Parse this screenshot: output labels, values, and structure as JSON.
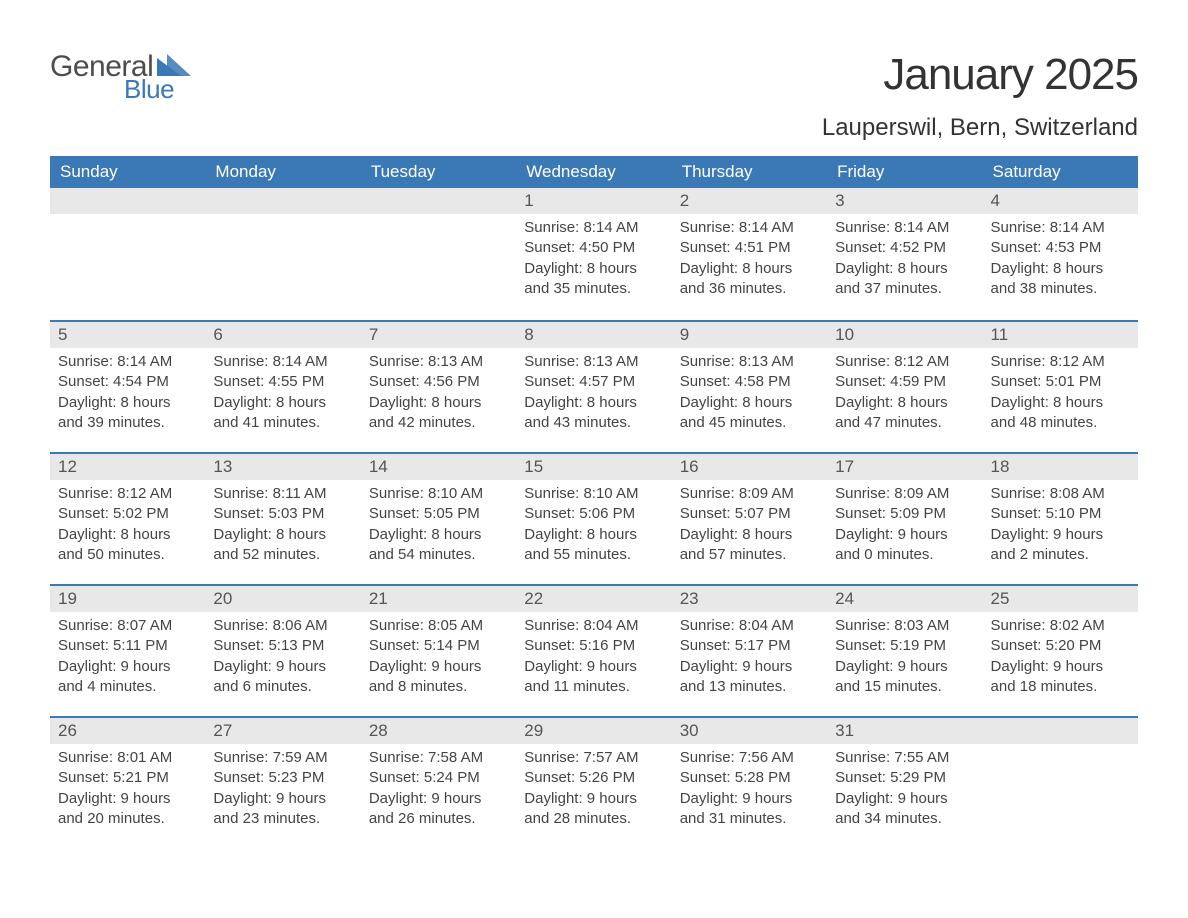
{
  "logo": {
    "line1": "General",
    "line2": "Blue",
    "accent_color": "#3b78b6"
  },
  "title": "January 2025",
  "subtitle": "Lauperswil, Bern, Switzerland",
  "structure_type": "table",
  "colors": {
    "header_bg": "#3b78b6",
    "header_text": "#ffffff",
    "daynum_bg": "#e8e8e8",
    "text": "#444444",
    "week_border": "#3b78b6"
  },
  "typography": {
    "title_fontsize": 44,
    "subtitle_fontsize": 24,
    "dayhead_fontsize": 17,
    "body_fontsize": 15
  },
  "day_headers": [
    "Sunday",
    "Monday",
    "Tuesday",
    "Wednesday",
    "Thursday",
    "Friday",
    "Saturday"
  ],
  "weeks": [
    [
      {
        "blank": true
      },
      {
        "blank": true
      },
      {
        "blank": true
      },
      {
        "n": "1",
        "sunrise": "Sunrise: 8:14 AM",
        "sunset": "Sunset: 4:50 PM",
        "d1": "Daylight: 8 hours",
        "d2": "and 35 minutes."
      },
      {
        "n": "2",
        "sunrise": "Sunrise: 8:14 AM",
        "sunset": "Sunset: 4:51 PM",
        "d1": "Daylight: 8 hours",
        "d2": "and 36 minutes."
      },
      {
        "n": "3",
        "sunrise": "Sunrise: 8:14 AM",
        "sunset": "Sunset: 4:52 PM",
        "d1": "Daylight: 8 hours",
        "d2": "and 37 minutes."
      },
      {
        "n": "4",
        "sunrise": "Sunrise: 8:14 AM",
        "sunset": "Sunset: 4:53 PM",
        "d1": "Daylight: 8 hours",
        "d2": "and 38 minutes."
      }
    ],
    [
      {
        "n": "5",
        "sunrise": "Sunrise: 8:14 AM",
        "sunset": "Sunset: 4:54 PM",
        "d1": "Daylight: 8 hours",
        "d2": "and 39 minutes."
      },
      {
        "n": "6",
        "sunrise": "Sunrise: 8:14 AM",
        "sunset": "Sunset: 4:55 PM",
        "d1": "Daylight: 8 hours",
        "d2": "and 41 minutes."
      },
      {
        "n": "7",
        "sunrise": "Sunrise: 8:13 AM",
        "sunset": "Sunset: 4:56 PM",
        "d1": "Daylight: 8 hours",
        "d2": "and 42 minutes."
      },
      {
        "n": "8",
        "sunrise": "Sunrise: 8:13 AM",
        "sunset": "Sunset: 4:57 PM",
        "d1": "Daylight: 8 hours",
        "d2": "and 43 minutes."
      },
      {
        "n": "9",
        "sunrise": "Sunrise: 8:13 AM",
        "sunset": "Sunset: 4:58 PM",
        "d1": "Daylight: 8 hours",
        "d2": "and 45 minutes."
      },
      {
        "n": "10",
        "sunrise": "Sunrise: 8:12 AM",
        "sunset": "Sunset: 4:59 PM",
        "d1": "Daylight: 8 hours",
        "d2": "and 47 minutes."
      },
      {
        "n": "11",
        "sunrise": "Sunrise: 8:12 AM",
        "sunset": "Sunset: 5:01 PM",
        "d1": "Daylight: 8 hours",
        "d2": "and 48 minutes."
      }
    ],
    [
      {
        "n": "12",
        "sunrise": "Sunrise: 8:12 AM",
        "sunset": "Sunset: 5:02 PM",
        "d1": "Daylight: 8 hours",
        "d2": "and 50 minutes."
      },
      {
        "n": "13",
        "sunrise": "Sunrise: 8:11 AM",
        "sunset": "Sunset: 5:03 PM",
        "d1": "Daylight: 8 hours",
        "d2": "and 52 minutes."
      },
      {
        "n": "14",
        "sunrise": "Sunrise: 8:10 AM",
        "sunset": "Sunset: 5:05 PM",
        "d1": "Daylight: 8 hours",
        "d2": "and 54 minutes."
      },
      {
        "n": "15",
        "sunrise": "Sunrise: 8:10 AM",
        "sunset": "Sunset: 5:06 PM",
        "d1": "Daylight: 8 hours",
        "d2": "and 55 minutes."
      },
      {
        "n": "16",
        "sunrise": "Sunrise: 8:09 AM",
        "sunset": "Sunset: 5:07 PM",
        "d1": "Daylight: 8 hours",
        "d2": "and 57 minutes."
      },
      {
        "n": "17",
        "sunrise": "Sunrise: 8:09 AM",
        "sunset": "Sunset: 5:09 PM",
        "d1": "Daylight: 9 hours",
        "d2": "and 0 minutes."
      },
      {
        "n": "18",
        "sunrise": "Sunrise: 8:08 AM",
        "sunset": "Sunset: 5:10 PM",
        "d1": "Daylight: 9 hours",
        "d2": "and 2 minutes."
      }
    ],
    [
      {
        "n": "19",
        "sunrise": "Sunrise: 8:07 AM",
        "sunset": "Sunset: 5:11 PM",
        "d1": "Daylight: 9 hours",
        "d2": "and 4 minutes."
      },
      {
        "n": "20",
        "sunrise": "Sunrise: 8:06 AM",
        "sunset": "Sunset: 5:13 PM",
        "d1": "Daylight: 9 hours",
        "d2": "and 6 minutes."
      },
      {
        "n": "21",
        "sunrise": "Sunrise: 8:05 AM",
        "sunset": "Sunset: 5:14 PM",
        "d1": "Daylight: 9 hours",
        "d2": "and 8 minutes."
      },
      {
        "n": "22",
        "sunrise": "Sunrise: 8:04 AM",
        "sunset": "Sunset: 5:16 PM",
        "d1": "Daylight: 9 hours",
        "d2": "and 11 minutes."
      },
      {
        "n": "23",
        "sunrise": "Sunrise: 8:04 AM",
        "sunset": "Sunset: 5:17 PM",
        "d1": "Daylight: 9 hours",
        "d2": "and 13 minutes."
      },
      {
        "n": "24",
        "sunrise": "Sunrise: 8:03 AM",
        "sunset": "Sunset: 5:19 PM",
        "d1": "Daylight: 9 hours",
        "d2": "and 15 minutes."
      },
      {
        "n": "25",
        "sunrise": "Sunrise: 8:02 AM",
        "sunset": "Sunset: 5:20 PM",
        "d1": "Daylight: 9 hours",
        "d2": "and 18 minutes."
      }
    ],
    [
      {
        "n": "26",
        "sunrise": "Sunrise: 8:01 AM",
        "sunset": "Sunset: 5:21 PM",
        "d1": "Daylight: 9 hours",
        "d2": "and 20 minutes."
      },
      {
        "n": "27",
        "sunrise": "Sunrise: 7:59 AM",
        "sunset": "Sunset: 5:23 PM",
        "d1": "Daylight: 9 hours",
        "d2": "and 23 minutes."
      },
      {
        "n": "28",
        "sunrise": "Sunrise: 7:58 AM",
        "sunset": "Sunset: 5:24 PM",
        "d1": "Daylight: 9 hours",
        "d2": "and 26 minutes."
      },
      {
        "n": "29",
        "sunrise": "Sunrise: 7:57 AM",
        "sunset": "Sunset: 5:26 PM",
        "d1": "Daylight: 9 hours",
        "d2": "and 28 minutes."
      },
      {
        "n": "30",
        "sunrise": "Sunrise: 7:56 AM",
        "sunset": "Sunset: 5:28 PM",
        "d1": "Daylight: 9 hours",
        "d2": "and 31 minutes."
      },
      {
        "n": "31",
        "sunrise": "Sunrise: 7:55 AM",
        "sunset": "Sunset: 5:29 PM",
        "d1": "Daylight: 9 hours",
        "d2": "and 34 minutes."
      },
      {
        "blank": true
      }
    ]
  ]
}
